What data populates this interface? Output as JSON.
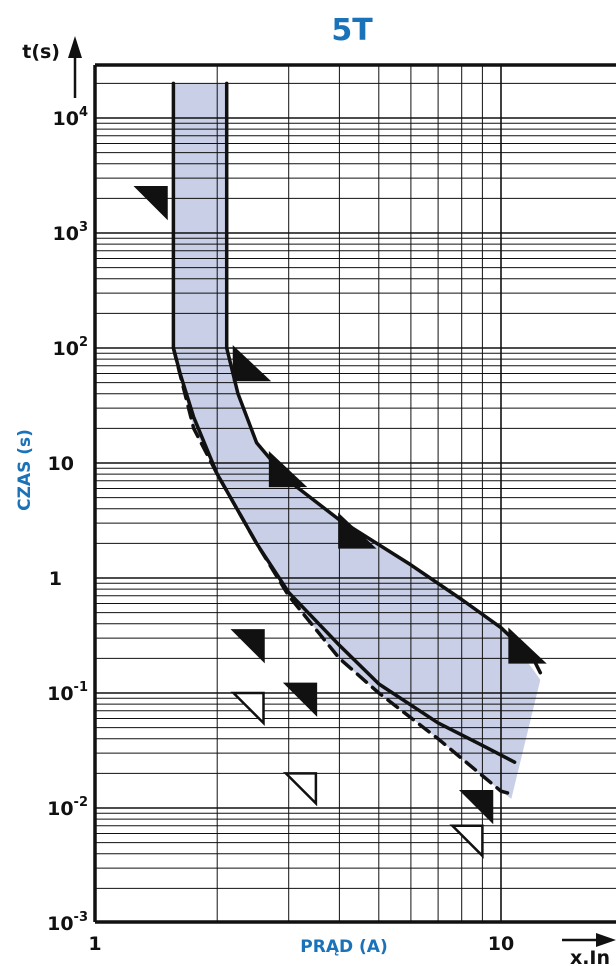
{
  "title": "5T",
  "y_axis_top_label": "t(s)",
  "y_axis_side_label": "CZAS (s)",
  "x_axis_label": "PRĄD (A)",
  "x_axis_end_label": "x.In",
  "colors": {
    "title": "#1a72b8",
    "axis_label": "#1a72b8",
    "band": "#c8cfe6",
    "curve": "#111111"
  },
  "y_tick_labels": [
    {
      "value": 10000,
      "base": "10",
      "exp": "4"
    },
    {
      "value": 1000,
      "base": "10",
      "exp": "3"
    },
    {
      "value": 100,
      "base": "10",
      "exp": "2"
    },
    {
      "value": 10,
      "base": "10",
      "exp": ""
    },
    {
      "value": 1,
      "base": "1",
      "exp": ""
    },
    {
      "value": 0.1,
      "base": "10",
      "exp": "-1"
    },
    {
      "value": 0.01,
      "base": "10",
      "exp": "-2"
    },
    {
      "value": 0.001,
      "base": "10",
      "exp": "-3"
    }
  ],
  "x_tick_labels": [
    {
      "value": 1,
      "text": "1"
    },
    {
      "value": 10,
      "text": "10"
    }
  ],
  "chart_data": {
    "type": "line",
    "xscale": "log",
    "yscale": "log",
    "xlim": [
      1,
      14
    ],
    "ylim": [
      0.001,
      20000
    ],
    "grid": true,
    "title": "5T",
    "xlabel": "PRĄD (A)",
    "ylabel": "CZAS (s)",
    "band": {
      "name": "tripping zone",
      "left_bottom": [
        [
          1.56,
          20000
        ],
        [
          1.56,
          100
        ],
        [
          1.75,
          20
        ],
        [
          2.0,
          8
        ],
        [
          2.5,
          2
        ],
        [
          3.0,
          0.7
        ],
        [
          4.0,
          0.2
        ],
        [
          5.0,
          0.1
        ],
        [
          7.0,
          0.04
        ],
        [
          10.0,
          0.014
        ],
        [
          10.6,
          0.012
        ]
      ],
      "right_top": [
        [
          2.11,
          20000
        ],
        [
          2.11,
          100
        ],
        [
          2.25,
          40
        ],
        [
          2.5,
          15
        ],
        [
          3.0,
          7
        ],
        [
          4.0,
          3.2
        ],
        [
          6.0,
          1.3
        ],
        [
          8.0,
          0.65
        ],
        [
          10.0,
          0.37
        ],
        [
          12.0,
          0.16
        ],
        [
          12.5,
          0.13
        ]
      ]
    },
    "series": [
      {
        "style": "solid",
        "points": [
          [
            2.11,
            20000
          ],
          [
            2.11,
            100
          ],
          [
            2.25,
            40
          ],
          [
            2.5,
            15
          ],
          [
            3.0,
            7
          ],
          [
            4.0,
            3.2
          ],
          [
            6.0,
            1.3
          ],
          [
            8.0,
            0.65
          ],
          [
            10.0,
            0.37
          ],
          [
            12.0,
            0.2
          ],
          [
            12.5,
            0.15
          ]
        ]
      },
      {
        "style": "solid",
        "points": [
          [
            1.56,
            20000
          ],
          [
            1.56,
            100
          ],
          [
            1.62,
            60
          ],
          [
            1.75,
            25
          ],
          [
            2.0,
            8
          ],
          [
            2.5,
            2
          ],
          [
            3.0,
            0.75
          ],
          [
            4.0,
            0.26
          ],
          [
            5.0,
            0.12
          ],
          [
            7.0,
            0.055
          ],
          [
            9.0,
            0.035
          ],
          [
            10.8,
            0.025
          ]
        ]
      },
      {
        "style": "dashed",
        "points": [
          [
            1.56,
            100
          ],
          [
            1.75,
            20
          ],
          [
            2.0,
            8
          ],
          [
            2.5,
            2
          ],
          [
            3.0,
            0.7
          ],
          [
            4.0,
            0.2
          ],
          [
            5.0,
            0.1
          ],
          [
            7.0,
            0.04
          ],
          [
            10.0,
            0.014
          ],
          [
            10.8,
            0.013
          ]
        ]
      }
    ],
    "markers": [
      {
        "x": 1.5,
        "y": 2500,
        "dir": "left",
        "fill": "black"
      },
      {
        "x": 2.2,
        "y": 100,
        "dir": "right",
        "fill": "black"
      },
      {
        "x": 2.7,
        "y": 12,
        "dir": "right",
        "fill": "black"
      },
      {
        "x": 4.0,
        "y": 3.5,
        "dir": "right",
        "fill": "black"
      },
      {
        "x": 10.5,
        "y": 0.35,
        "dir": "right",
        "fill": "black"
      },
      {
        "x": 2.6,
        "y": 0.35,
        "dir": "left",
        "fill": "black"
      },
      {
        "x": 3.5,
        "y": 0.12,
        "dir": "left",
        "fill": "black"
      },
      {
        "x": 9.5,
        "y": 0.014,
        "dir": "left",
        "fill": "black"
      },
      {
        "x": 2.6,
        "y": 0.1,
        "dir": "left",
        "fill": "none"
      },
      {
        "x": 3.5,
        "y": 0.02,
        "dir": "left",
        "fill": "none"
      },
      {
        "x": 9.0,
        "y": 0.007,
        "dir": "left",
        "fill": "none"
      }
    ]
  }
}
